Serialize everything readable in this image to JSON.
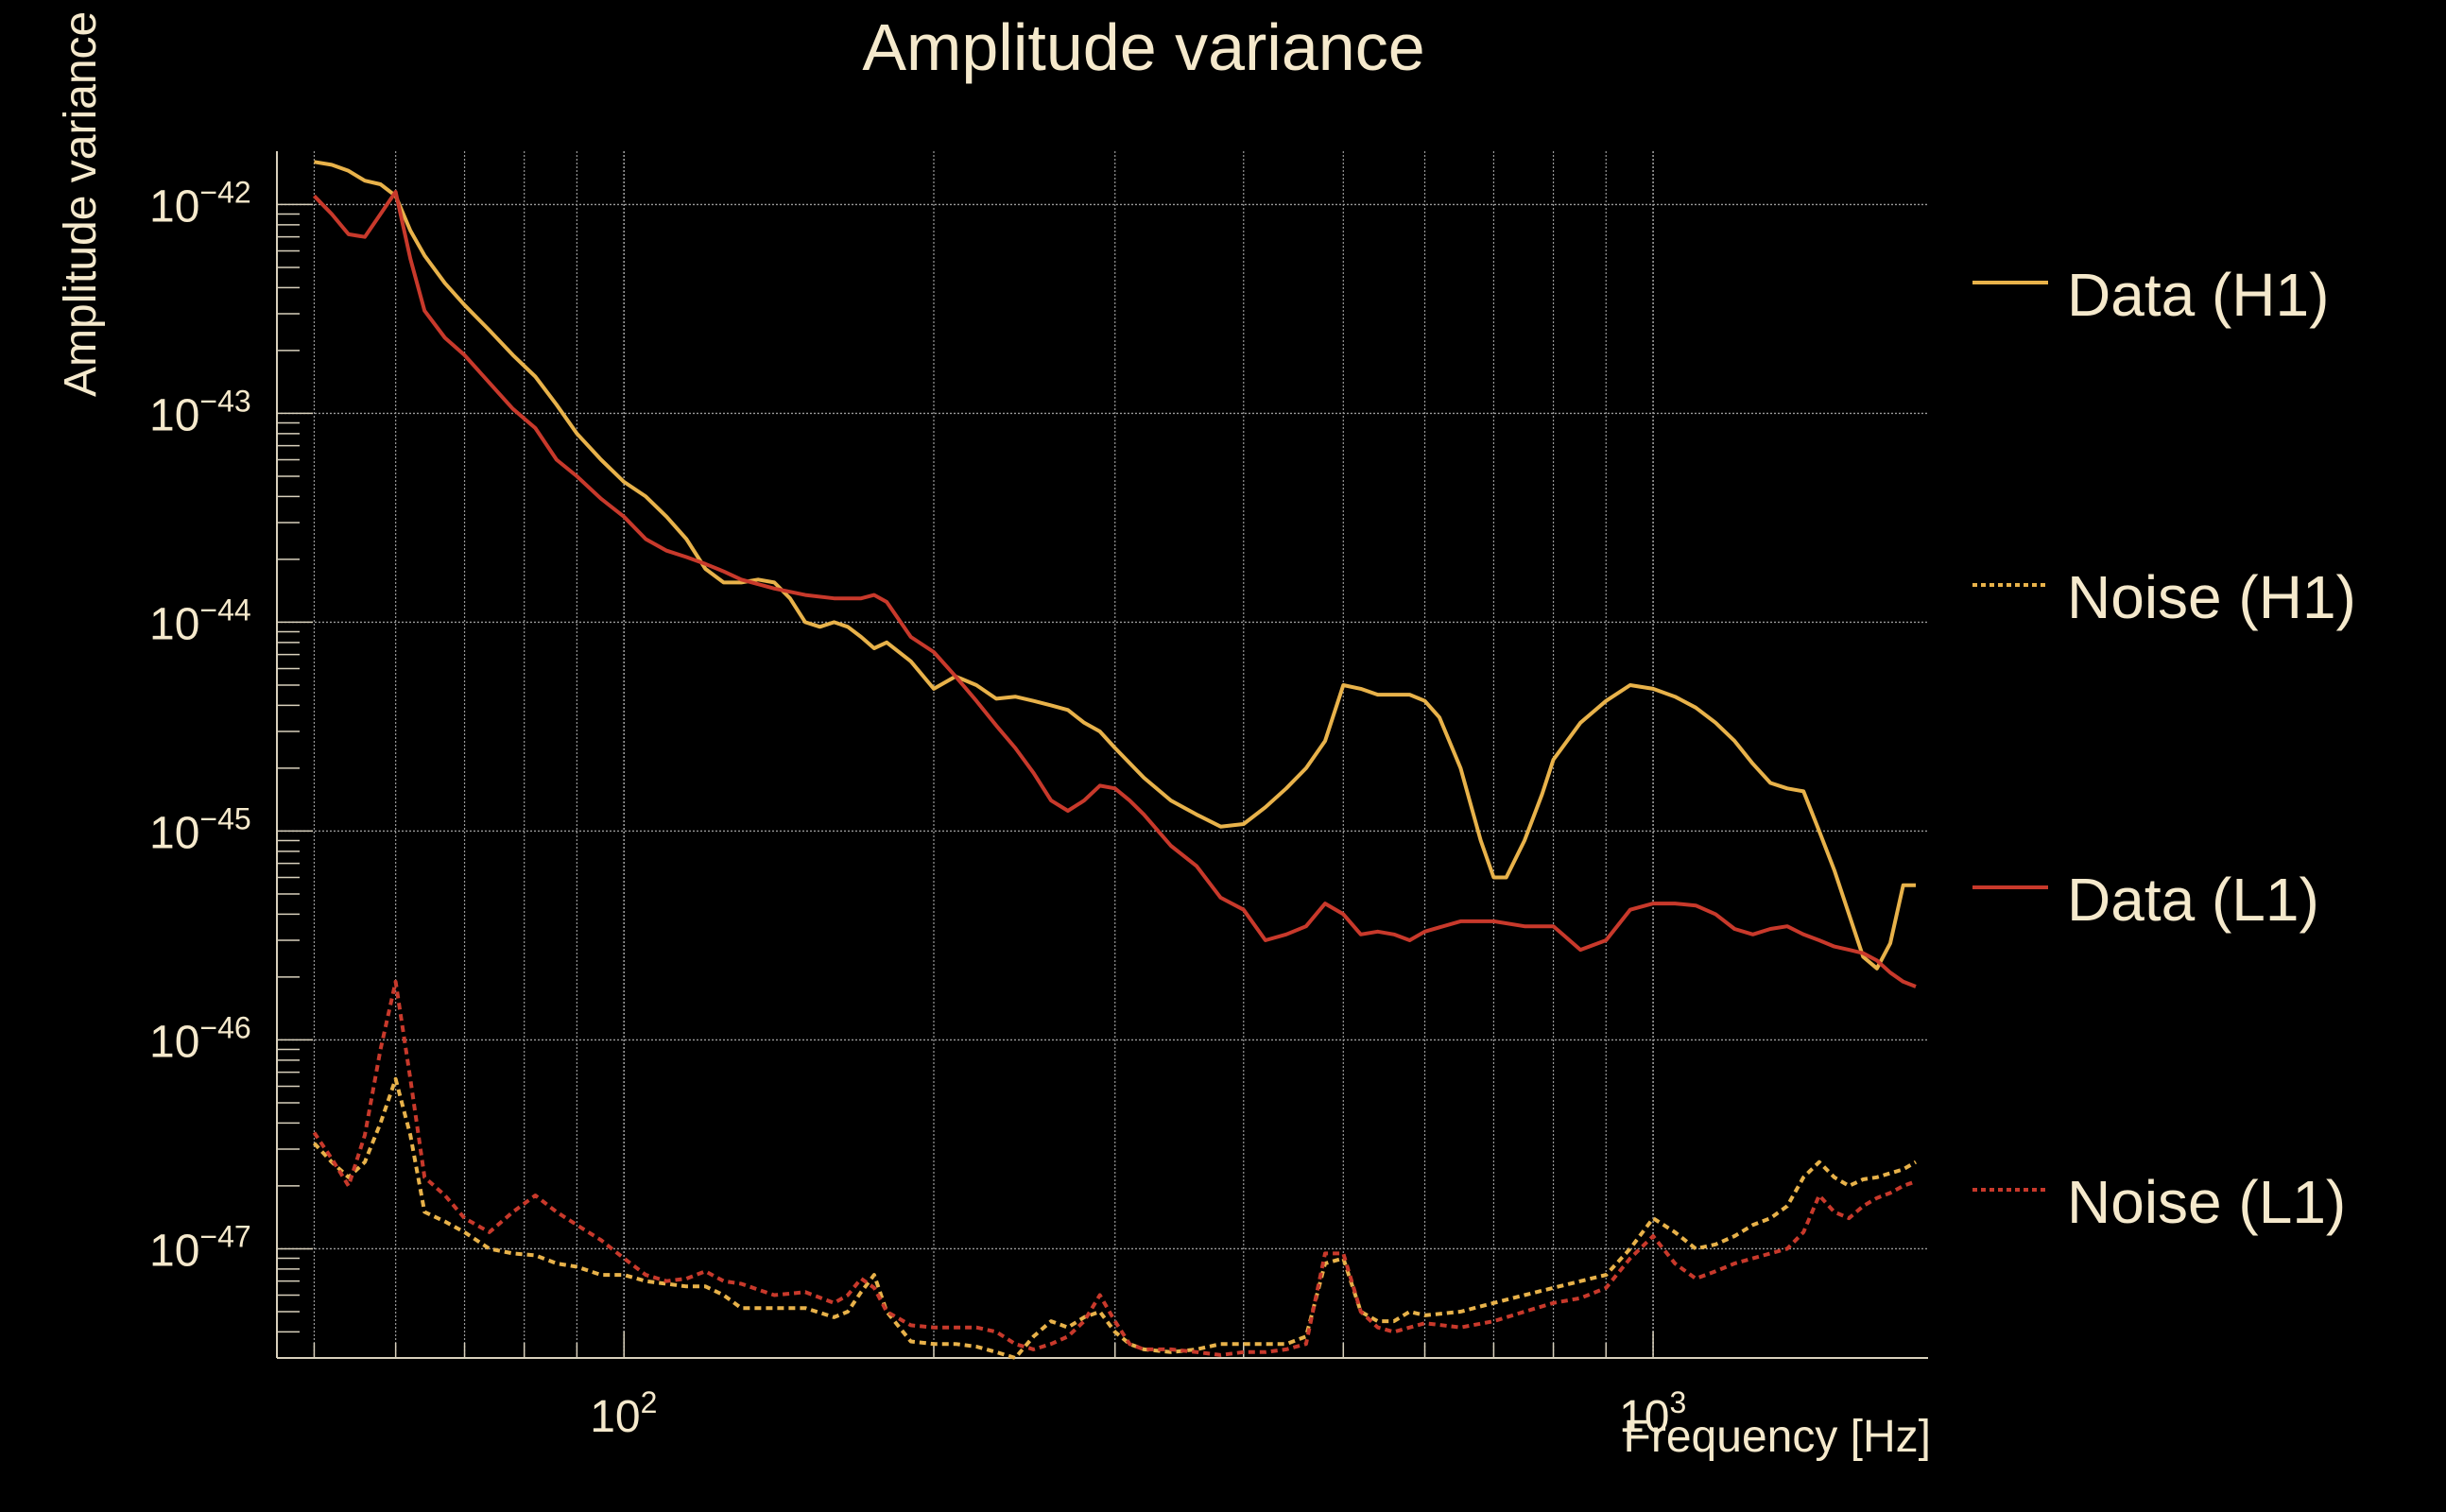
{
  "chart_data": {
    "type": "line",
    "title": "Amplitude variance",
    "xlabel": "Frequency [Hz]",
    "ylabel": "Amplitude variance",
    "xscale": "log",
    "yscale": "log",
    "xlim": [
      46,
      1850
    ],
    "ylim": [
      3e-48,
      1.8e-42
    ],
    "grid": true,
    "legend_placement": "right",
    "x_ticks": [
      100,
      1000
    ],
    "x_tick_labels": [
      "10",
      "10"
    ],
    "x_tick_exponents": [
      "2",
      "3"
    ],
    "y_ticks": [
      1e-42,
      1e-43,
      1e-44,
      1e-45,
      1e-46,
      1e-47
    ],
    "y_tick_labels": [
      "10",
      "10",
      "10",
      "10",
      "10",
      "10"
    ],
    "y_tick_exponents": [
      "−42",
      "−43",
      "−44",
      "−45",
      "−46",
      "−47"
    ],
    "series": [
      {
        "name": "Data (H1)",
        "color": "#e8b24a",
        "dash": "solid",
        "x": [
          50,
          52,
          54,
          56,
          58,
          60,
          62,
          64,
          67,
          70,
          74,
          78,
          82,
          86,
          90,
          95,
          100,
          105,
          110,
          115,
          120,
          125,
          130,
          135,
          140,
          145,
          150,
          155,
          160,
          165,
          170,
          175,
          180,
          190,
          200,
          210,
          220,
          230,
          240,
          250,
          260,
          270,
          280,
          290,
          300,
          320,
          340,
          360,
          380,
          400,
          420,
          440,
          460,
          480,
          500,
          520,
          540,
          560,
          580,
          600,
          620,
          650,
          680,
          700,
          720,
          750,
          780,
          800,
          850,
          900,
          950,
          1000,
          1050,
          1100,
          1150,
          1200,
          1250,
          1300,
          1350,
          1400,
          1450,
          1500,
          1550,
          1600,
          1650,
          1700,
          1750,
          1800
        ],
        "y": [
          1.6e-42,
          1.55e-42,
          1.45e-42,
          1.3e-42,
          1.25e-42,
          1.1e-42,
          7.5e-43,
          5.7e-43,
          4.2e-43,
          3.3e-43,
          2.5e-43,
          1.9e-43,
          1.5e-43,
          1.1e-43,
          8e-44,
          6e-44,
          4.7e-44,
          4e-44,
          3.2e-44,
          2.5e-44,
          1.8e-44,
          1.55e-44,
          1.55e-44,
          1.6e-44,
          1.55e-44,
          1.3e-44,
          1e-44,
          9.5e-45,
          1e-44,
          9.5e-45,
          8.5e-45,
          7.5e-45,
          8e-45,
          6.5e-45,
          4.8e-45,
          5.5e-45,
          5e-45,
          4.3e-45,
          4.4e-45,
          4.2e-45,
          4e-45,
          3.8e-45,
          3.3e-45,
          3e-45,
          2.5e-45,
          1.8e-45,
          1.4e-45,
          1.2e-45,
          1.05e-45,
          1.08e-45,
          1.3e-45,
          1.6e-45,
          2e-45,
          2.7e-45,
          5e-45,
          4.8e-45,
          4.5e-45,
          4.5e-45,
          4.5e-45,
          4.2e-45,
          3.5e-45,
          2e-45,
          9e-46,
          6e-46,
          6e-46,
          9e-46,
          1.5e-45,
          2.2e-45,
          3.3e-45,
          4.2e-45,
          5e-45,
          4.8e-45,
          4.4e-45,
          3.9e-45,
          3.3e-45,
          2.7e-45,
          2.1e-45,
          1.7e-45,
          1.6e-45,
          1.55e-45,
          1e-45,
          6.5e-46,
          4e-46,
          2.5e-46,
          2.2e-46,
          2.9e-46,
          5.5e-46,
          5.5e-46
        ]
      },
      {
        "name": "Noise (H1)",
        "color": "#e8b24a",
        "dash": "dotted",
        "x": [
          50,
          52,
          54,
          56,
          58,
          60,
          62,
          64,
          67,
          70,
          74,
          78,
          82,
          86,
          90,
          95,
          100,
          105,
          110,
          115,
          120,
          125,
          130,
          140,
          150,
          160,
          165,
          170,
          175,
          180,
          190,
          200,
          210,
          220,
          230,
          240,
          250,
          260,
          270,
          280,
          290,
          300,
          310,
          320,
          340,
          360,
          380,
          400,
          420,
          440,
          460,
          480,
          500,
          520,
          540,
          560,
          580,
          600,
          650,
          700,
          750,
          800,
          850,
          900,
          950,
          1000,
          1050,
          1100,
          1150,
          1200,
          1250,
          1300,
          1350,
          1400,
          1450,
          1500,
          1550,
          1600,
          1650,
          1700,
          1750,
          1800
        ],
        "y": [
          3.2e-47,
          2.6e-47,
          2.2e-47,
          2.6e-47,
          4e-47,
          6.5e-47,
          3.5e-47,
          1.5e-47,
          1.35e-47,
          1.2e-47,
          1e-47,
          9.5e-48,
          9.3e-48,
          8.5e-48,
          8.2e-48,
          7.5e-48,
          7.5e-48,
          7e-48,
          6.8e-48,
          6.6e-48,
          6.6e-48,
          6e-48,
          5.2e-48,
          5.2e-48,
          5.2e-48,
          4.7e-48,
          5e-48,
          6.2e-48,
          7.5e-48,
          5e-48,
          3.6e-48,
          3.5e-48,
          3.5e-48,
          3.4e-48,
          3.2e-48,
          3e-48,
          3.8e-48,
          4.5e-48,
          4.2e-48,
          4.7e-48,
          5e-48,
          4e-48,
          3.5e-48,
          3.3e-48,
          3.2e-48,
          3.3e-48,
          3.5e-48,
          3.5e-48,
          3.5e-48,
          3.5e-48,
          3.8e-48,
          8.5e-48,
          9e-48,
          5e-48,
          4.5e-48,
          4.5e-48,
          5e-48,
          4.8e-48,
          5e-48,
          5.5e-48,
          6e-48,
          6.5e-48,
          7e-48,
          7.5e-48,
          1e-47,
          1.4e-47,
          1.2e-47,
          1e-47,
          1.05e-47,
          1.15e-47,
          1.3e-47,
          1.4e-47,
          1.6e-47,
          2.2e-47,
          2.6e-47,
          2.2e-47,
          2e-47,
          2.15e-47,
          2.2e-47,
          2.3e-47,
          2.4e-47,
          2.6e-47
        ]
      },
      {
        "name": "Data (L1)",
        "color": "#c8392b",
        "dash": "solid",
        "x": [
          50,
          52,
          54,
          56,
          58,
          60,
          62,
          64,
          67,
          70,
          74,
          78,
          82,
          86,
          90,
          95,
          100,
          105,
          110,
          115,
          120,
          125,
          130,
          140,
          150,
          160,
          165,
          170,
          175,
          180,
          190,
          200,
          210,
          220,
          230,
          240,
          250,
          260,
          270,
          280,
          290,
          300,
          310,
          320,
          340,
          360,
          380,
          400,
          420,
          440,
          460,
          480,
          500,
          520,
          540,
          560,
          580,
          600,
          650,
          700,
          750,
          800,
          850,
          900,
          950,
          1000,
          1050,
          1100,
          1150,
          1200,
          1250,
          1300,
          1350,
          1400,
          1450,
          1500,
          1550,
          1600,
          1650,
          1700,
          1750,
          1800
        ],
        "y": [
          1.1e-42,
          9e-43,
          7.2e-43,
          7e-43,
          9e-43,
          1.15e-42,
          5.5e-43,
          3.1e-43,
          2.3e-43,
          1.9e-43,
          1.4e-43,
          1.05e-43,
          8.5e-44,
          6e-44,
          5e-44,
          3.9e-44,
          3.2e-44,
          2.5e-44,
          2.2e-44,
          2.05e-44,
          1.9e-44,
          1.75e-44,
          1.6e-44,
          1.45e-44,
          1.35e-44,
          1.3e-44,
          1.3e-44,
          1.3e-44,
          1.35e-44,
          1.25e-44,
          8.5e-45,
          7.2e-45,
          5.5e-45,
          4.2e-45,
          3.2e-45,
          2.5e-45,
          1.9e-45,
          1.4e-45,
          1.25e-45,
          1.4e-45,
          1.65e-45,
          1.6e-45,
          1.4e-45,
          1.2e-45,
          8.5e-46,
          6.8e-46,
          4.8e-46,
          4.2e-46,
          3e-46,
          3.2e-46,
          3.5e-46,
          4.5e-46,
          4e-46,
          3.2e-46,
          3.3e-46,
          3.2e-46,
          3e-46,
          3.3e-46,
          3.7e-46,
          3.7e-46,
          3.5e-46,
          3.5e-46,
          2.7e-46,
          3e-46,
          4.2e-46,
          4.5e-46,
          4.5e-46,
          4.4e-46,
          4e-46,
          3.4e-46,
          3.2e-46,
          3.4e-46,
          3.5e-46,
          3.2e-46,
          3e-46,
          2.8e-46,
          2.7e-46,
          2.6e-46,
          2.4e-46,
          2.1e-46,
          1.9e-46,
          1.8e-46
        ]
      },
      {
        "name": "Noise (L1)",
        "color": "#c8392b",
        "dash": "dotted",
        "x": [
          50,
          52,
          54,
          56,
          58,
          60,
          62,
          64,
          67,
          70,
          74,
          78,
          82,
          86,
          90,
          95,
          100,
          105,
          110,
          115,
          120,
          125,
          130,
          140,
          150,
          160,
          165,
          170,
          175,
          180,
          190,
          200,
          210,
          220,
          230,
          240,
          250,
          260,
          270,
          280,
          290,
          300,
          310,
          320,
          340,
          360,
          380,
          400,
          420,
          440,
          460,
          480,
          500,
          520,
          540,
          560,
          580,
          600,
          650,
          700,
          750,
          800,
          850,
          900,
          950,
          1000,
          1050,
          1100,
          1150,
          1200,
          1250,
          1300,
          1350,
          1400,
          1450,
          1500,
          1550,
          1600,
          1650,
          1700,
          1750,
          1800
        ],
        "y": [
          3.6e-47,
          2.7e-47,
          2e-47,
          3.5e-47,
          9e-47,
          1.9e-46,
          6.5e-47,
          2.2e-47,
          1.8e-47,
          1.4e-47,
          1.2e-47,
          1.5e-47,
          1.8e-47,
          1.5e-47,
          1.3e-47,
          1.1e-47,
          9e-48,
          7.5e-48,
          7e-48,
          7.2e-48,
          7.8e-48,
          7e-48,
          6.8e-48,
          6e-48,
          6.2e-48,
          5.5e-48,
          6e-48,
          7.2e-48,
          6.5e-48,
          5e-48,
          4.3e-48,
          4.2e-48,
          4.2e-48,
          4.2e-48,
          4e-48,
          3.5e-48,
          3.3e-48,
          3.5e-48,
          3.8e-48,
          4.5e-48,
          6e-48,
          4.5e-48,
          3.5e-48,
          3.3e-48,
          3.3e-48,
          3.2e-48,
          3.1e-48,
          3.2e-48,
          3.2e-48,
          3.3e-48,
          3.5e-48,
          9.5e-48,
          9.5e-48,
          5e-48,
          4.2e-48,
          4e-48,
          4.2e-48,
          4.4e-48,
          4.2e-48,
          4.5e-48,
          5e-48,
          5.5e-48,
          5.8e-48,
          6.5e-48,
          9e-48,
          1.15e-47,
          8.5e-48,
          7.2e-48,
          7.8e-48,
          8.5e-48,
          9e-48,
          9.5e-48,
          1e-47,
          1.2e-47,
          1.8e-47,
          1.5e-47,
          1.4e-47,
          1.6e-47,
          1.75e-47,
          1.85e-47,
          2e-47,
          2.1e-47
        ]
      }
    ]
  }
}
